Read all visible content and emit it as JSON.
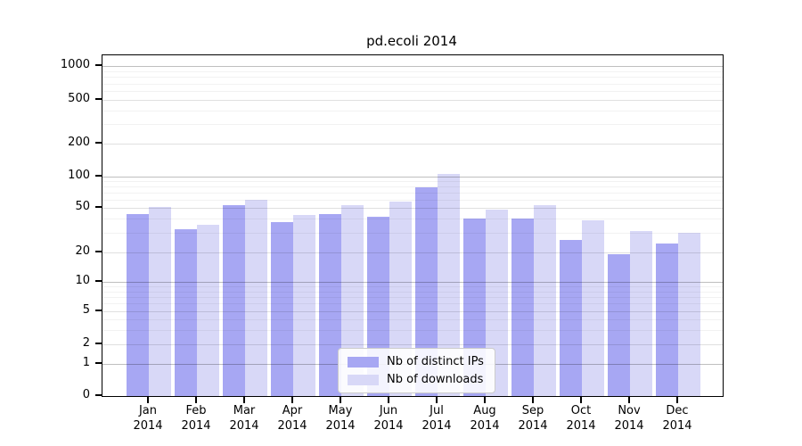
{
  "chart_data": {
    "type": "bar",
    "title": "pd.ecoli 2014",
    "x_axis": {
      "months": [
        "Jan",
        "Feb",
        "Mar",
        "Apr",
        "May",
        "Jun",
        "Jul",
        "Aug",
        "Sep",
        "Oct",
        "Nov",
        "Dec"
      ],
      "year": "2014"
    },
    "series": [
      {
        "name": "Nb of distinct IPs",
        "color": "#a7a7f3",
        "values": [
          44,
          32,
          53,
          37,
          44,
          42,
          79,
          40,
          40,
          26,
          19,
          24
        ]
      },
      {
        "name": "Nb of downloads",
        "color": "#d8d8f7",
        "values": [
          51,
          35,
          60,
          43,
          53,
          58,
          105,
          48,
          53,
          39,
          31,
          30
        ]
      }
    ],
    "y_axis": {
      "scale": "log-like",
      "ticks": [
        {
          "value": 1000,
          "frac": 0.031
        },
        {
          "value": 500,
          "frac": 0.132
        },
        {
          "value": 200,
          "frac": 0.259
        },
        {
          "value": 100,
          "frac": 0.356
        },
        {
          "value": 50,
          "frac": 0.448
        },
        {
          "value": 20,
          "frac": 0.578
        },
        {
          "value": 10,
          "frac": 0.665
        },
        {
          "value": 5,
          "frac": 0.751
        },
        {
          "value": 2,
          "frac": 0.848
        },
        {
          "value": 1,
          "frac": 0.906
        },
        {
          "value": 0,
          "frac": 1.0
        }
      ],
      "minor_ticks": [
        3,
        4,
        6,
        7,
        8,
        9,
        30,
        40,
        60,
        70,
        80,
        90,
        300,
        400,
        600,
        700,
        800,
        900
      ]
    },
    "legend": {
      "position": "inside-bottom-center",
      "entries": [
        "Nb of distinct IPs",
        "Nb of downloads"
      ]
    },
    "grid": "major-and-minor, drawn over bars"
  }
}
